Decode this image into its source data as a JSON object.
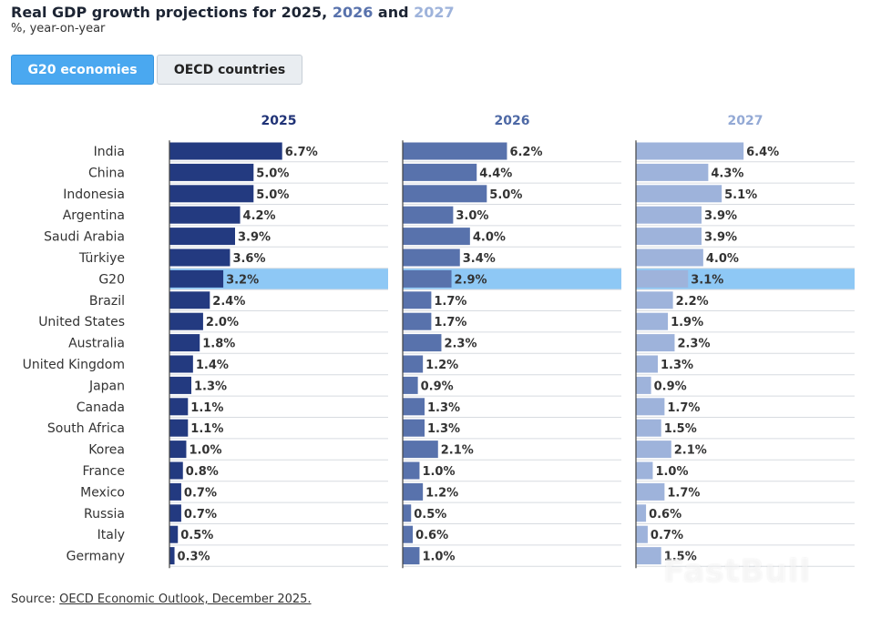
{
  "title": {
    "part1": "Real GDP growth projections for ",
    "y1": "2025",
    "sep": ", ",
    "y2": "2026",
    "and": " and ",
    "y3": "2027"
  },
  "subtitle": "%, year-on-year",
  "tabs": {
    "g20": "G20 economies",
    "oecd": "OECD countries"
  },
  "source": {
    "prefix": "Source: ",
    "link": "OECD Economic Outlook, December 2025."
  },
  "watermark": "FastBull",
  "colors": {
    "series_2025": "#233a80",
    "series_2026": "#5872ac",
    "series_2027": "#9eb3db",
    "highlight": "#8ec8f5"
  },
  "chart_data": {
    "type": "bar",
    "orientation": "horizontal",
    "highlight_category": "G20",
    "categories": [
      "India",
      "China",
      "Indonesia",
      "Argentina",
      "Saudi Arabia",
      "Türkiye",
      "G20",
      "Brazil",
      "United States",
      "Australia",
      "United Kingdom",
      "Japan",
      "Canada",
      "South Africa",
      "Korea",
      "France",
      "Mexico",
      "Russia",
      "Italy",
      "Germany"
    ],
    "series": [
      {
        "name": "2025",
        "values": [
          6.7,
          5.0,
          5.0,
          4.2,
          3.9,
          3.6,
          3.2,
          2.4,
          2.0,
          1.8,
          1.4,
          1.3,
          1.1,
          1.1,
          1.0,
          0.8,
          0.7,
          0.7,
          0.5,
          0.3
        ]
      },
      {
        "name": "2026",
        "values": [
          6.2,
          4.4,
          5.0,
          3.0,
          4.0,
          3.4,
          2.9,
          1.7,
          1.7,
          2.3,
          1.2,
          0.9,
          1.3,
          1.3,
          2.1,
          1.0,
          1.2,
          0.5,
          0.6,
          1.0
        ]
      },
      {
        "name": "2027",
        "values": [
          6.4,
          4.3,
          5.1,
          3.9,
          3.9,
          4.0,
          3.1,
          2.2,
          1.9,
          2.3,
          1.3,
          0.9,
          1.7,
          1.5,
          2.1,
          1.0,
          1.7,
          0.6,
          0.7,
          1.5
        ]
      }
    ],
    "value_suffix": "%",
    "xlim": [
      0,
      13
    ]
  }
}
